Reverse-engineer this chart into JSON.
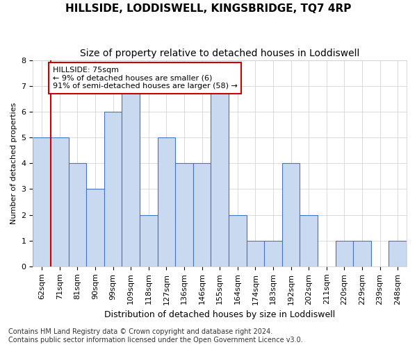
{
  "title": "HILLSIDE, LODDISWELL, KINGSBRIDGE, TQ7 4RP",
  "subtitle": "Size of property relative to detached houses in Loddiswell",
  "xlabel": "Distribution of detached houses by size in Loddiswell",
  "ylabel": "Number of detached properties",
  "categories": [
    "62sqm",
    "71sqm",
    "81sqm",
    "90sqm",
    "99sqm",
    "109sqm",
    "118sqm",
    "127sqm",
    "136sqm",
    "146sqm",
    "155sqm",
    "164sqm",
    "174sqm",
    "183sqm",
    "192sqm",
    "202sqm",
    "211sqm",
    "220sqm",
    "229sqm",
    "239sqm",
    "248sqm"
  ],
  "values": [
    5,
    5,
    4,
    3,
    6,
    7,
    2,
    5,
    4,
    4,
    7,
    2,
    1,
    1,
    4,
    2,
    0,
    1,
    1,
    0,
    1
  ],
  "bar_color": "#c9d9f0",
  "bar_edge_color": "#4472c4",
  "highlight_index": 1,
  "highlight_line_color": "#cc0000",
  "annotation_text": "HILLSIDE: 75sqm\n← 9% of detached houses are smaller (6)\n91% of semi-detached houses are larger (58) →",
  "annotation_box_color": "#ffffff",
  "annotation_box_edge_color": "#cc0000",
  "ylim": [
    0,
    8
  ],
  "yticks": [
    0,
    1,
    2,
    3,
    4,
    5,
    6,
    7,
    8
  ],
  "footer": "Contains HM Land Registry data © Crown copyright and database right 2024.\nContains public sector information licensed under the Open Government Licence v3.0.",
  "title_fontsize": 11,
  "subtitle_fontsize": 10,
  "xlabel_fontsize": 9,
  "ylabel_fontsize": 8,
  "tick_fontsize": 8,
  "annotation_fontsize": 8,
  "footer_fontsize": 7
}
